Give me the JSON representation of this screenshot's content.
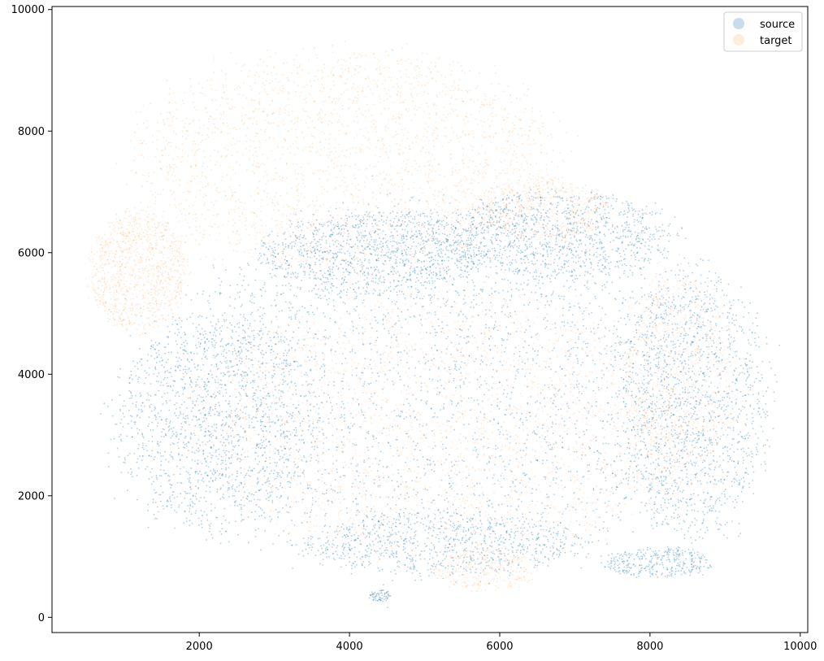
{
  "chart_data": {
    "type": "scatter",
    "title": "",
    "xlabel": "",
    "ylabel": "",
    "xlim": [
      40,
      10100
    ],
    "ylim": [
      -250,
      10050
    ],
    "xticks": [
      2000,
      4000,
      6000,
      8000,
      10000
    ],
    "yticks": [
      0,
      2000,
      4000,
      6000,
      8000,
      10000
    ],
    "grid": false,
    "legend_position": "upper-right",
    "series": [
      {
        "name": "source",
        "color": "#1f77b4",
        "marker_alpha": 0.35,
        "regions": [
          {
            "cx": 5300,
            "cy": 3800,
            "rx": 3800,
            "ry": 3000,
            "weight": 10
          },
          {
            "cx": 2200,
            "cy": 3200,
            "rx": 1300,
            "ry": 1800,
            "weight": 4
          },
          {
            "cx": 8600,
            "cy": 3500,
            "rx": 1000,
            "ry": 2200,
            "weight": 4
          },
          {
            "cx": 4300,
            "cy": 6000,
            "rx": 1500,
            "ry": 700,
            "weight": 3
          },
          {
            "cx": 6800,
            "cy": 6300,
            "rx": 1500,
            "ry": 700,
            "weight": 3
          },
          {
            "cx": 5200,
            "cy": 1200,
            "rx": 1800,
            "ry": 500,
            "weight": 2
          },
          {
            "cx": 4400,
            "cy": 350,
            "rx": 150,
            "ry": 100,
            "weight": 0.2
          },
          {
            "cx": 8100,
            "cy": 900,
            "rx": 700,
            "ry": 250,
            "weight": 1
          }
        ],
        "points_estimate": 9000
      },
      {
        "name": "target",
        "color": "#ff7f0e",
        "marker_alpha": 0.18,
        "regions": [
          {
            "cx": 4000,
            "cy": 7500,
            "rx": 2800,
            "ry": 1800,
            "weight": 7
          },
          {
            "cx": 1200,
            "cy": 5700,
            "rx": 650,
            "ry": 1000,
            "weight": 3
          },
          {
            "cx": 5300,
            "cy": 3200,
            "rx": 3300,
            "ry": 2100,
            "weight": 7
          },
          {
            "cx": 8400,
            "cy": 4000,
            "rx": 700,
            "ry": 1800,
            "weight": 2
          },
          {
            "cx": 6600,
            "cy": 6700,
            "rx": 900,
            "ry": 500,
            "weight": 1.5
          },
          {
            "cx": 5800,
            "cy": 800,
            "rx": 700,
            "ry": 350,
            "weight": 0.8
          }
        ],
        "points_estimate": 7000
      }
    ]
  }
}
